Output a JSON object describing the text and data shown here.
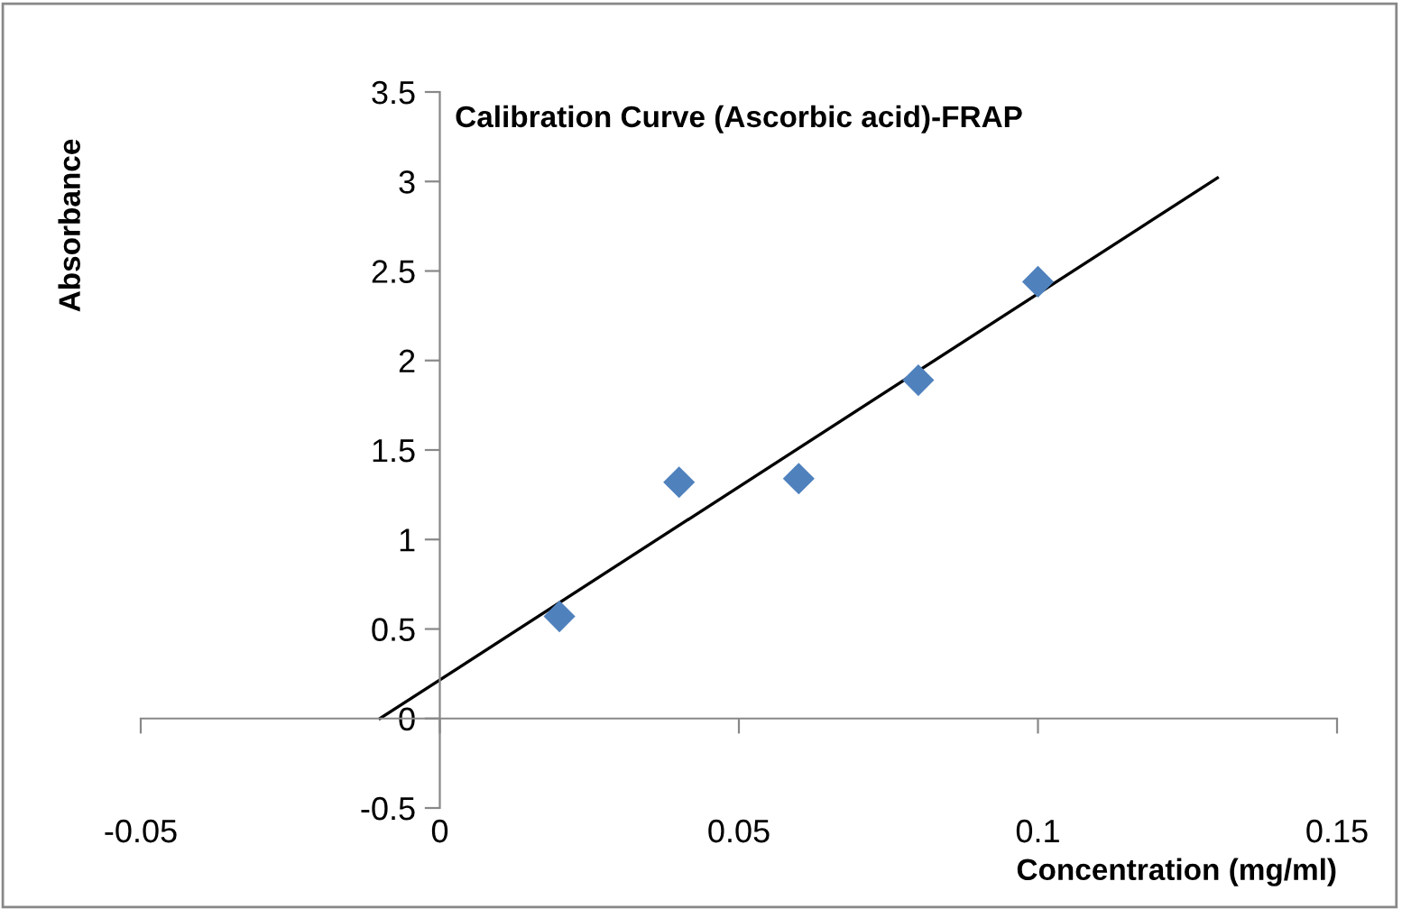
{
  "chart_data": {
    "type": "scatter",
    "title": "Calibration Curve (Ascorbic acid)-FRAP",
    "xlabel": "Concentration (mg/ml)",
    "ylabel": "Absorbance",
    "x": [
      0.02,
      0.04,
      0.06,
      0.08,
      0.1
    ],
    "series": [
      {
        "color": "#4f81bd",
        "marker": "diamond",
        "values": [
          0.57,
          1.32,
          1.34,
          1.89,
          2.44
        ]
      },
      {
        "type": "line",
        "color": "#000000",
        "marker": "none",
        "line_style": "solid",
        "x": [
          -0.01,
          0.13
        ],
        "values": [
          0.0,
          3.02
        ]
      }
    ],
    "xlim": [
      -0.05,
      0.15
    ],
    "ylim": [
      -0.5,
      3.5
    ],
    "xticks": [
      -0.05,
      0,
      0.05,
      0.1,
      0.15
    ],
    "yticks": [
      -0.5,
      0,
      0.5,
      1,
      1.5,
      2,
      2.5,
      3,
      3.5
    ],
    "legend": false
  }
}
